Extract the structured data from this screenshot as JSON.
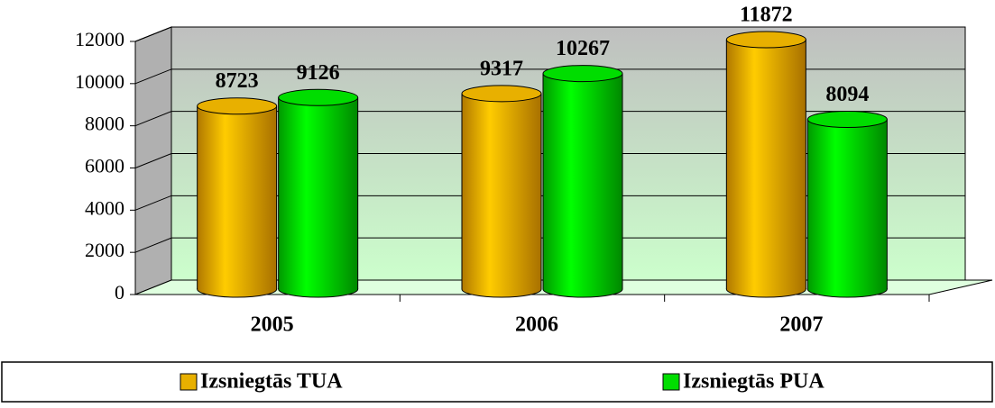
{
  "chart_data": {
    "type": "bar",
    "categories": [
      "2005",
      "2006",
      "2007"
    ],
    "series": [
      {
        "name": "Izsniegtās TUA",
        "color": "#e8b000",
        "values": [
          8723,
          9317,
          11872
        ]
      },
      {
        "name": "Izsniegtās PUA",
        "color": "#00dd00",
        "values": [
          9126,
          10267,
          8094
        ]
      }
    ],
    "ylim": [
      0,
      12000
    ],
    "yticks": [
      0,
      2000,
      4000,
      6000,
      8000,
      10000,
      12000
    ],
    "grid": true,
    "legend": "bottom"
  }
}
